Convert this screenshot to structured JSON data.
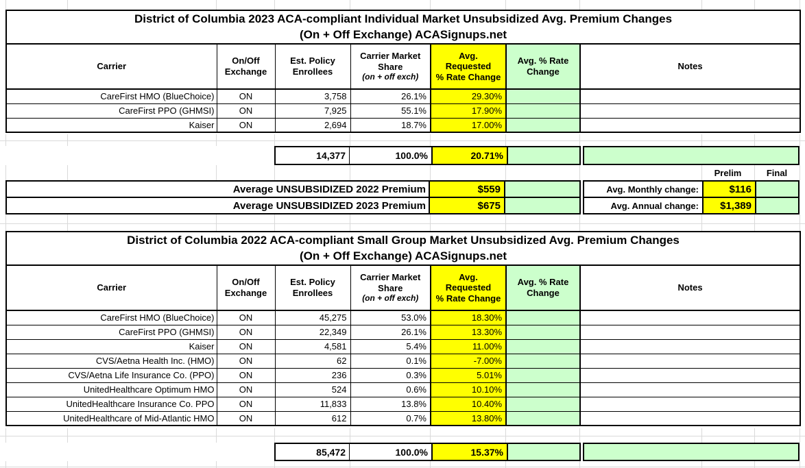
{
  "colors": {
    "highlight_yellow": "#FFFF00",
    "highlight_green": "#CCFFCC"
  },
  "headers": {
    "carrier": "Carrier",
    "exchange": "On/Off Exchange",
    "enrollees": "Est. Policy Enrollees",
    "share_line1": "Carrier Market Share",
    "share_line2": "(on + off exch)",
    "requested_line1": "Avg.",
    "requested_line2": "Requested",
    "requested_line3": "% Rate Change",
    "avg_change": "Avg. % Rate Change",
    "notes": "Notes"
  },
  "tables": [
    {
      "title_line1": "District of Columbia 2023 ACA-compliant Individual Market Unsubsidized Avg. Premium Changes",
      "title_line2": "(On + Off Exchange) ACASignups.net",
      "rows": [
        {
          "carrier": "CareFirst HMO (BlueChoice)",
          "exchange": "ON",
          "enrollees": "3,758",
          "share": "26.1%",
          "requested": "29.30%",
          "avg_change": "",
          "notes": ""
        },
        {
          "carrier": "CareFirst PPO (GHMSI)",
          "exchange": "ON",
          "enrollees": "7,925",
          "share": "55.1%",
          "requested": "17.90%",
          "avg_change": "",
          "notes": ""
        },
        {
          "carrier": "Kaiser",
          "exchange": "ON",
          "enrollees": "2,694",
          "share": "18.7%",
          "requested": "17.00%",
          "avg_change": "",
          "notes": ""
        }
      ],
      "total": {
        "enrollees": "14,377",
        "share": "100.0%",
        "requested": "20.71%",
        "avg_change": "",
        "notes": ""
      }
    },
    {
      "title_line1": "District of Columbia 2022 ACA-compliant Small Group Market Unsubsidized Avg. Premium Changes",
      "title_line2": "(On + Off Exchange) ACASignups.net",
      "rows": [
        {
          "carrier": "CareFirst HMO (BlueChoice)",
          "exchange": "ON",
          "enrollees": "45,275",
          "share": "53.0%",
          "requested": "18.30%",
          "avg_change": "",
          "notes": ""
        },
        {
          "carrier": "CareFirst PPO (GHMSI)",
          "exchange": "ON",
          "enrollees": "22,349",
          "share": "26.1%",
          "requested": "13.30%",
          "avg_change": "",
          "notes": ""
        },
        {
          "carrier": "Kaiser",
          "exchange": "ON",
          "enrollees": "4,581",
          "share": "5.4%",
          "requested": "11.00%",
          "avg_change": "",
          "notes": ""
        },
        {
          "carrier": "CVS/Aetna Health Inc. (HMO)",
          "exchange": "ON",
          "enrollees": "62",
          "share": "0.1%",
          "requested": "-7.00%",
          "avg_change": "",
          "notes": ""
        },
        {
          "carrier": "CVS/Aetna Life Insurance Co. (PPO)",
          "exchange": "ON",
          "enrollees": "236",
          "share": "0.3%",
          "requested": "5.01%",
          "avg_change": "",
          "notes": ""
        },
        {
          "carrier": "UnitedHealthcare Optimum HMO",
          "exchange": "ON",
          "enrollees": "524",
          "share": "0.6%",
          "requested": "10.10%",
          "avg_change": "",
          "notes": ""
        },
        {
          "carrier": "UnitedHealthcare Insurance Co. PPO",
          "exchange": "ON",
          "enrollees": "11,833",
          "share": "13.8%",
          "requested": "10.40%",
          "avg_change": "",
          "notes": ""
        },
        {
          "carrier": "UnitedHealthcare of Mid-Atlantic HMO",
          "exchange": "ON",
          "enrollees": "612",
          "share": "0.7%",
          "requested": "13.80%",
          "avg_change": "",
          "notes": ""
        }
      ],
      "total": {
        "enrollees": "85,472",
        "share": "100.0%",
        "requested": "15.37%",
        "avg_change": "",
        "notes": ""
      }
    }
  ],
  "summary": {
    "prelim_label": "Prelim",
    "final_label": "Final",
    "rows": [
      {
        "label": "Average UNSUBSIDIZED 2022 Premium",
        "value": "$559",
        "change_label": "Avg. Monthly change:",
        "change_value": "$116",
        "final_value": ""
      },
      {
        "label": "Average UNSUBSIDIZED 2023 Premium",
        "value": "$675",
        "change_label": "Avg. Annual change:",
        "change_value": "$1,389",
        "final_value": ""
      }
    ]
  }
}
